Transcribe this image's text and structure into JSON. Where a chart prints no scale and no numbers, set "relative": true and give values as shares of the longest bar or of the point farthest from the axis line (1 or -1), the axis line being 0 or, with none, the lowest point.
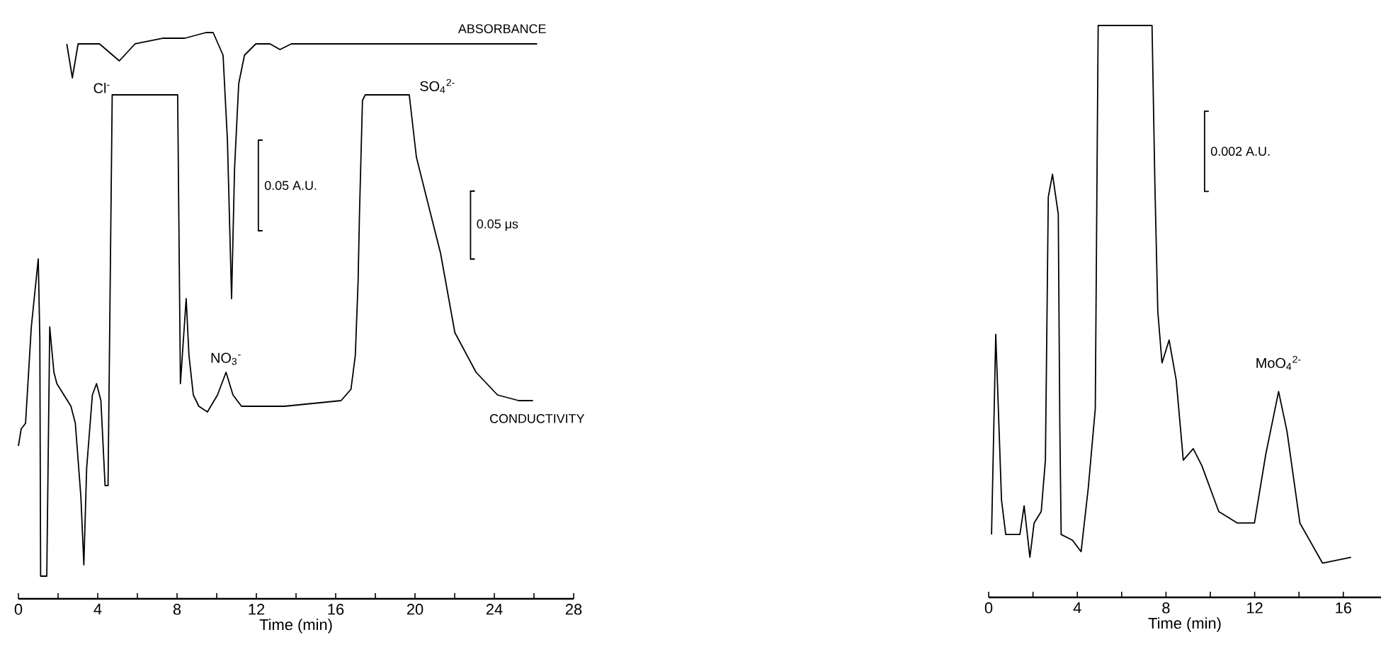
{
  "chart_data": [
    {
      "type": "line",
      "relative": true,
      "xlabel": "Time (min)",
      "xlim": [
        0,
        28
      ],
      "tick_labels": "x",
      "xticks": [
        0,
        {
          "value": 2,
          "label": null
        },
        4,
        {
          "value": 6,
          "label": null
        },
        8,
        {
          "value": 10,
          "label": null
        },
        12,
        {
          "value": 14,
          "label": null
        },
        16,
        {
          "value": 18,
          "label": null
        },
        20,
        {
          "value": 22,
          "label": null
        },
        24,
        {
          "value": 26,
          "label": null
        },
        28
      ],
      "series": [
        {
          "name": "ABSORBANCE",
          "color": "#000000",
          "x": [
            2.44,
            2.72,
            3.01,
            4.09,
            5.09,
            5.88,
            7.31,
            8.39,
            9.46,
            9.82,
            10.32,
            10.54,
            10.75,
            10.9,
            11.11,
            11.4,
            11.97,
            12.69,
            13.19,
            13.76,
            15.56,
            26.16
          ],
          "values": [
            0.98,
            0.92,
            0.98,
            0.98,
            0.95,
            0.98,
            0.99,
            0.99,
            1.0,
            1.0,
            0.96,
            0.81,
            0.53,
            0.76,
            0.91,
            0.96,
            0.98,
            0.98,
            0.97,
            0.98,
            0.98,
            0.98
          ]
        },
        {
          "name": "CONDUCTIVITY",
          "color": "#000000",
          "x": [
            0,
            0.14,
            0.36,
            0.65,
            1.0,
            1.08,
            1.12,
            1.43,
            1.58,
            1.79,
            1.94,
            2.65,
            2.87,
            3.15,
            3.3,
            3.44,
            3.73,
            3.94,
            4.16,
            4.37,
            4.52,
            4.73,
            8.03,
            8.17,
            8.46,
            8.6,
            8.82,
            9.1,
            9.53,
            10.04,
            10.47,
            10.82,
            11.25,
            13.41,
            16.27,
            16.77,
            16.99,
            17.13,
            17.2,
            17.35,
            17.49,
            19.71,
            20.07,
            20.57,
            21.29,
            22.01,
            23.08,
            24.16,
            25.23,
            25.95
          ],
          "values": [
            0.27,
            0.3,
            0.31,
            0.48,
            0.6,
            0.46,
            0.04,
            0.04,
            0.48,
            0.4,
            0.38,
            0.34,
            0.31,
            0.18,
            0.06,
            0.23,
            0.36,
            0.38,
            0.35,
            0.2,
            0.2,
            0.89,
            0.89,
            0.38,
            0.53,
            0.43,
            0.36,
            0.34,
            0.33,
            0.36,
            0.4,
            0.36,
            0.34,
            0.34,
            0.35,
            0.37,
            0.43,
            0.56,
            0.68,
            0.88,
            0.89,
            0.89,
            0.78,
            0.71,
            0.61,
            0.47,
            0.4,
            0.36,
            0.35,
            0.35
          ]
        }
      ],
      "annotations": [
        {
          "text": "Cl$^{-}$",
          "x": 4.73,
          "y": 0.89
        },
        {
          "text": "NO$_{3}$$^{-}$",
          "x": 10.47,
          "y": 0.4
        },
        {
          "text": "SO$_{4}$$^{2-}$",
          "x": 19.71,
          "y": 0.89
        },
        "0.05 A.U.",
        "0.05 μs"
      ]
    },
    {
      "type": "line",
      "relative": true,
      "xlabel": "Time (min)",
      "xlim": [
        0,
        17.7
      ],
      "tick_labels": "x",
      "xticks": [
        0,
        {
          "value": 2,
          "label": null
        },
        4,
        {
          "value": 6,
          "label": null
        },
        8,
        {
          "value": 10,
          "label": null
        },
        12,
        {
          "value": 14,
          "label": null
        },
        16
      ],
      "series": [
        {
          "color": "#000000",
          "x": [
            0.13,
            0.32,
            0.58,
            0.77,
            1.41,
            1.6,
            1.86,
            2.05,
            2.37,
            2.56,
            2.69,
            2.88,
            3.14,
            3.21,
            3.27,
            3.78,
            4.17,
            4.49,
            4.81,
            4.9,
            4.94,
            7.37,
            7.5,
            7.63,
            7.82,
            8.14,
            8.46,
            8.78,
            9.23,
            9.62,
            10.38,
            11.22,
            11.99,
            12.5,
            13.08,
            13.46,
            14.04,
            15.06,
            16.35
          ],
          "values": [
            0.11,
            0.46,
            0.17,
            0.11,
            0.11,
            0.16,
            0.07,
            0.13,
            0.15,
            0.24,
            0.7,
            0.74,
            0.67,
            0.3,
            0.11,
            0.1,
            0.08,
            0.19,
            0.33,
            0.8,
            1.0,
            1.0,
            0.72,
            0.5,
            0.41,
            0.45,
            0.38,
            0.24,
            0.26,
            0.23,
            0.15,
            0.13,
            0.13,
            0.25,
            0.36,
            0.29,
            0.13,
            0.06,
            0.07
          ]
        }
      ],
      "annotations": [
        {
          "text": "MoO$_{4}$$^{2-}$",
          "x": 13.08,
          "y": 0.36
        },
        "0.002 A.U."
      ]
    }
  ]
}
